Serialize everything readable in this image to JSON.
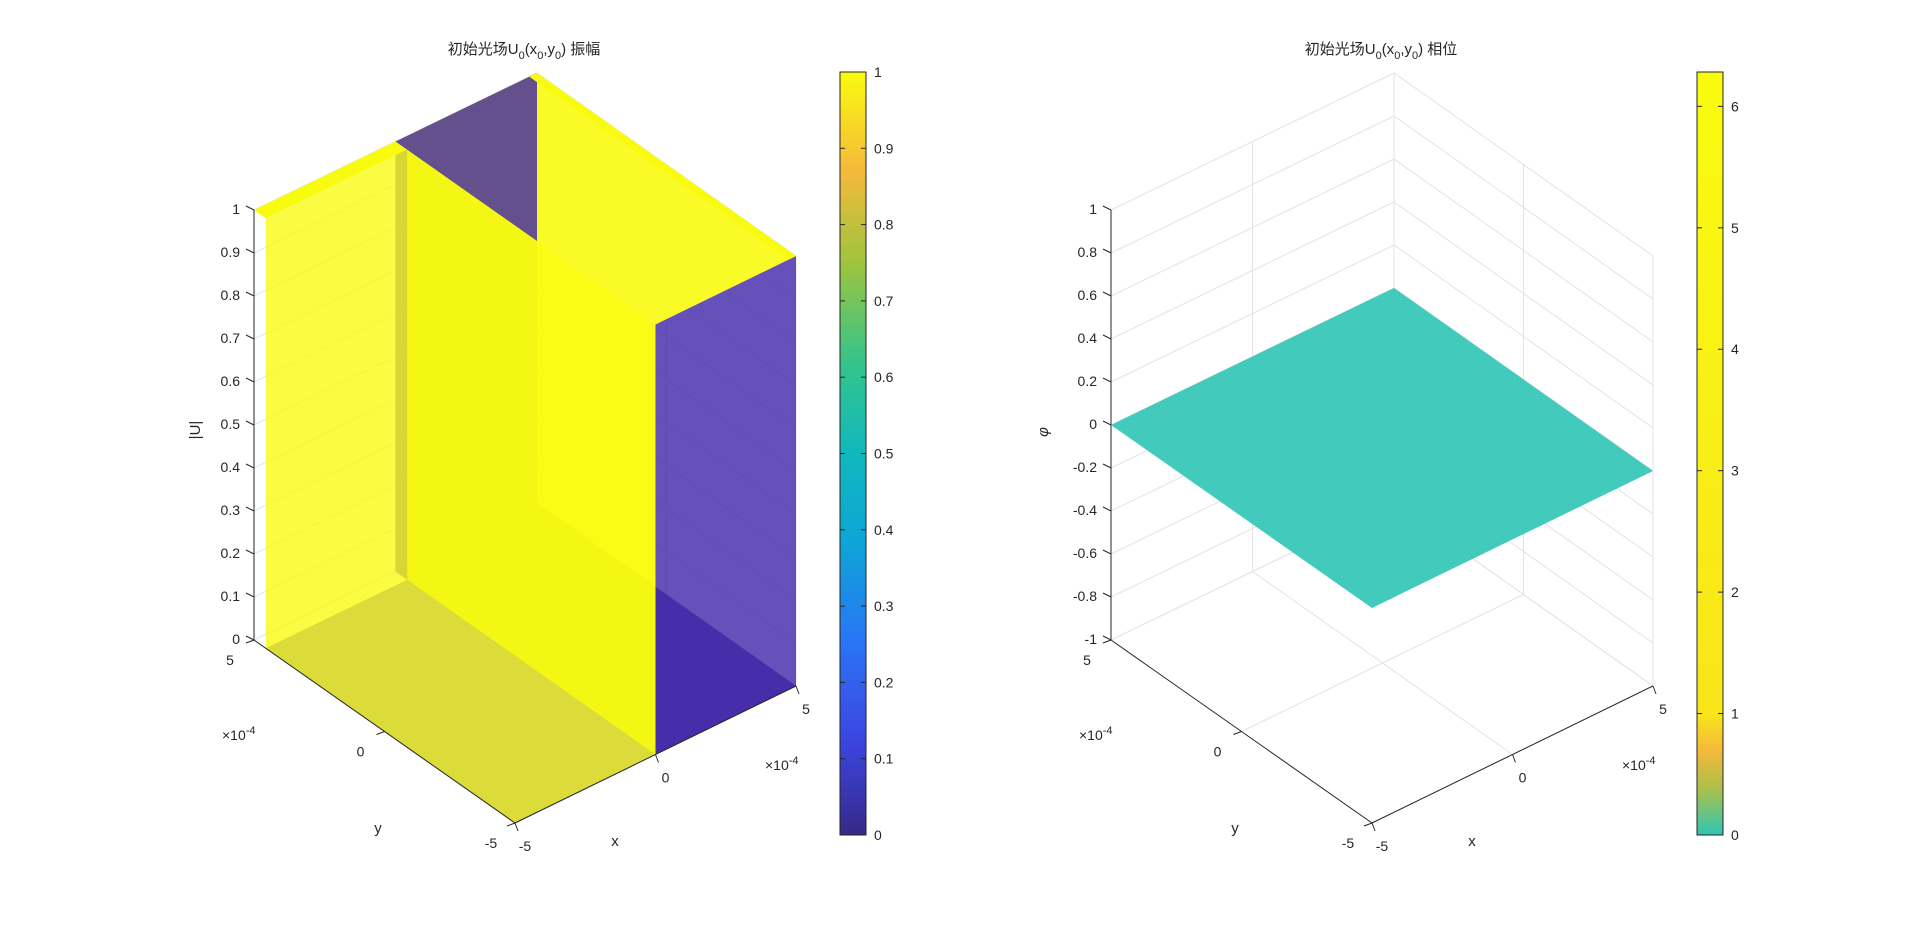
{
  "figure": {
    "background": "#ffffff"
  },
  "chart_data": [
    {
      "type": "surface",
      "title": {
        "main": "初始光场U",
        "sub": "0",
        "paren_open": "(x",
        "sub2": "0",
        "comma": ",y",
        "sub3": "0",
        "paren_close": ")",
        "tail": " 振幅"
      },
      "xlabel": "x",
      "ylabel": "y",
      "zlabel": "|U|",
      "xlim": [
        -0.0005,
        0.0005
      ],
      "ylim": [
        -0.0005,
        0.0005
      ],
      "zlim": [
        0,
        1
      ],
      "x_ticks": [
        "-5",
        "0",
        "5"
      ],
      "y_ticks": [
        "-5",
        "0",
        "5"
      ],
      "z_ticks": [
        "0",
        "0.1",
        "0.2",
        "0.3",
        "0.4",
        "0.5",
        "0.6",
        "0.7",
        "0.8",
        "0.9",
        "1"
      ],
      "exponent_label": {
        "base": "×10",
        "power": "-4"
      },
      "grid": true,
      "surface": {
        "description_values": "amplitude 1 for x < 0, amplitude 0 for x >= 0",
        "x_break": 0,
        "left_value": 1,
        "right_value": 0,
        "color_left": "#f9fb0e",
        "color_right": "#3e26a8",
        "face_alpha": 0.8
      },
      "colorbar": {
        "limits": [
          0,
          1
        ],
        "ticks": [
          "0",
          "0.1",
          "0.2",
          "0.3",
          "0.4",
          "0.5",
          "0.6",
          "0.7",
          "0.8",
          "0.9",
          "1"
        ],
        "colormap": "parula"
      }
    },
    {
      "type": "surface",
      "title": {
        "main": "初始光场U",
        "sub": "0",
        "paren_open": "(x",
        "sub2": "0",
        "comma": ",y",
        "sub3": "0",
        "paren_close": ")",
        "tail": " 相位"
      },
      "xlabel": "x",
      "ylabel": "y",
      "zlabel": "φ",
      "xlim": [
        -0.0005,
        0.0005
      ],
      "ylim": [
        -0.0005,
        0.0005
      ],
      "zlim": [
        -1,
        1
      ],
      "x_ticks": [
        "-5",
        "0",
        "5"
      ],
      "y_ticks": [
        "-5",
        "0",
        "5"
      ],
      "z_ticks": [
        "-1",
        "-0.8",
        "-0.6",
        "-0.4",
        "-0.2",
        "0",
        "0.2",
        "0.4",
        "0.6",
        "0.8",
        "1"
      ],
      "exponent_label": {
        "base": "×10",
        "power": "-4"
      },
      "grid": true,
      "surface": {
        "value": 0,
        "color": "#2ec5b5",
        "face_alpha": 0.9
      },
      "colorbar": {
        "limits": [
          0,
          6.283
        ],
        "ticks": [
          "0",
          "1",
          "2",
          "3",
          "4",
          "5",
          "6"
        ],
        "colormap": "parula"
      }
    }
  ]
}
